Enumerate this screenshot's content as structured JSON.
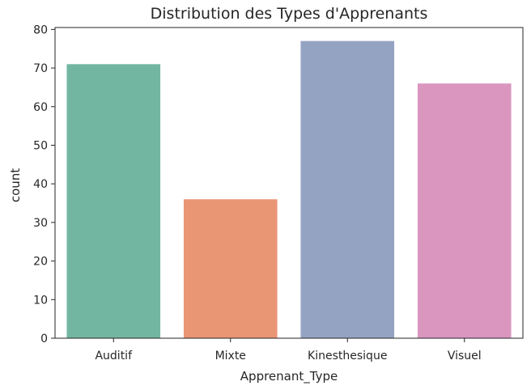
{
  "chart_data": {
    "type": "bar",
    "title": "Distribution des Types d'Apprenants",
    "xlabel": "Apprenant_Type",
    "ylabel": "count",
    "categories": [
      "Auditif",
      "Mixte",
      "Kinesthesique",
      "Visuel"
    ],
    "values": [
      71,
      36,
      77,
      66
    ],
    "colors": [
      "#72b6a1",
      "#e99675",
      "#95a3c3",
      "#db96c0"
    ],
    "ylim": [
      0,
      80.5
    ],
    "yticks": [
      0,
      10,
      20,
      30,
      40,
      50,
      60,
      70,
      80
    ],
    "grid": false,
    "legend": "none"
  }
}
